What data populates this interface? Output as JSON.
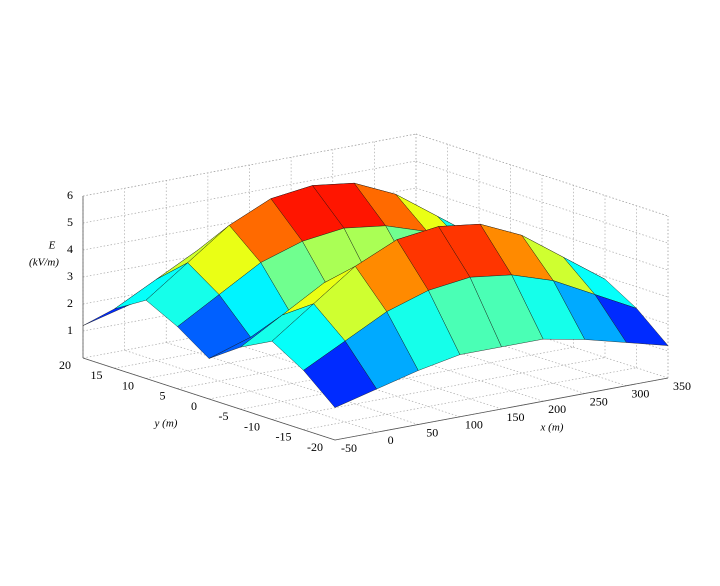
{
  "chart_data": {
    "type": "surface",
    "x": [
      -50,
      0,
      50,
      100,
      150,
      200,
      250,
      300,
      350
    ],
    "y": [
      -20,
      -15,
      -10,
      -5,
      0,
      5,
      10,
      15,
      20
    ],
    "z": [
      [
        1.2,
        2.2,
        2.9,
        2.3,
        1.5,
        2.3,
        2.9,
        2.2,
        1.2
      ],
      [
        1.6,
        3.0,
        4.0,
        3.2,
        2.0,
        3.2,
        4.0,
        3.0,
        1.6
      ],
      [
        2.0,
        3.8,
        5.1,
        4.1,
        2.5,
        4.1,
        5.1,
        3.8,
        2.0
      ],
      [
        2.3,
        4.3,
        5.8,
        4.6,
        2.9,
        4.6,
        5.8,
        4.3,
        2.3
      ],
      [
        2.3,
        4.5,
        6.0,
        4.8,
        2.9,
        4.8,
        6.0,
        4.5,
        2.3
      ],
      [
        2.3,
        4.3,
        5.8,
        4.6,
        2.9,
        4.6,
        5.8,
        4.3,
        2.3
      ],
      [
        2.0,
        3.8,
        5.1,
        4.1,
        2.5,
        4.1,
        5.1,
        3.8,
        2.0
      ],
      [
        1.6,
        3.0,
        4.0,
        3.2,
        2.0,
        3.2,
        4.0,
        3.0,
        1.6
      ],
      [
        1.2,
        2.2,
        2.9,
        2.3,
        1.5,
        2.3,
        2.9,
        2.2,
        1.2
      ]
    ],
    "xlim": [
      -50,
      350
    ],
    "ylim": [
      -20,
      20
    ],
    "zlim": [
      0,
      6
    ],
    "xticks": [
      -50,
      0,
      50,
      100,
      150,
      200,
      250,
      300,
      350
    ],
    "yticks": [
      -20,
      -15,
      -10,
      -5,
      0,
      5,
      10,
      15,
      20
    ],
    "zticks": [
      1,
      2,
      3,
      4,
      5,
      6
    ],
    "xlabel": "x (m)",
    "ylabel": "y (m)",
    "zlabel": [
      "E",
      "(kV/m)"
    ],
    "grid": true,
    "colormap": "jet"
  }
}
